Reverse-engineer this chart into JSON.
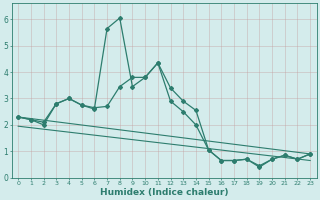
{
  "xlabel": "Humidex (Indice chaleur)",
  "background_color": "#d4ecec",
  "line_color": "#2d7d6e",
  "xlim": [
    -0.5,
    23.5
  ],
  "ylim": [
    0,
    6.6
  ],
  "yticks": [
    0,
    1,
    2,
    3,
    4,
    5,
    6
  ],
  "xticks": [
    0,
    1,
    2,
    3,
    4,
    5,
    6,
    7,
    8,
    9,
    10,
    11,
    12,
    13,
    14,
    15,
    16,
    17,
    18,
    19,
    20,
    21,
    22,
    23
  ],
  "series_smooth_x": [
    0,
    1,
    2,
    3,
    4,
    5,
    6,
    7,
    8,
    9,
    10,
    11,
    12,
    13,
    14,
    15,
    16,
    17,
    18,
    19,
    20,
    21,
    22,
    23
  ],
  "series_smooth_y": [
    2.3,
    2.2,
    2.1,
    2.8,
    3.0,
    2.75,
    2.65,
    2.7,
    3.45,
    3.8,
    3.8,
    4.35,
    3.4,
    2.9,
    2.55,
    1.05,
    0.65,
    0.65,
    0.7,
    0.45,
    0.7,
    0.85,
    0.7,
    0.9
  ],
  "series_spike_x": [
    0,
    1,
    2,
    3,
    4,
    5,
    6,
    7,
    8,
    9,
    10,
    11,
    12,
    13,
    14,
    15,
    16,
    17,
    18,
    19,
    20,
    21,
    22,
    23
  ],
  "series_spike_y": [
    2.3,
    2.2,
    2.0,
    2.8,
    3.0,
    2.75,
    2.6,
    5.65,
    6.05,
    3.45,
    3.8,
    4.35,
    2.9,
    2.5,
    2.0,
    1.05,
    0.65,
    0.65,
    0.7,
    0.4,
    0.7,
    0.85,
    0.7,
    0.9
  ],
  "trend1_x": [
    0,
    23
  ],
  "trend1_y": [
    2.3,
    0.9
  ],
  "trend2_x": [
    0,
    23
  ],
  "trend2_y": [
    1.95,
    0.65
  ]
}
